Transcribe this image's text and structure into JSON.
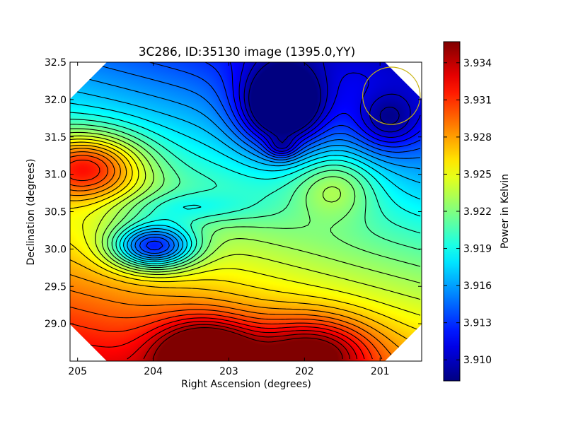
{
  "chart_data": {
    "type": "heatmap",
    "title": "3C286, ID:35130 image (1395.0,YY)",
    "xlabel": "Right Ascension (degrees)",
    "ylabel": "Declination (degrees)",
    "colorbar_label": "Power in Kelvin",
    "colormap": "jet",
    "grid": false,
    "x_axis": {
      "range": [
        205.1,
        200.45
      ],
      "ticks": [
        205,
        204,
        203,
        202,
        201
      ],
      "tick_labels": [
        "205",
        "204",
        "203",
        "202",
        "201"
      ]
    },
    "y_axis": {
      "range": [
        28.5,
        32.5
      ],
      "ticks": [
        29.0,
        29.5,
        30.0,
        30.5,
        31.0,
        31.5,
        32.0,
        32.5
      ],
      "tick_labels": [
        "29.0",
        "29.5",
        "30.0",
        "30.5",
        "31.0",
        "31.5",
        "32.0",
        "32.5"
      ]
    },
    "colorbar": {
      "range": [
        3.9083,
        3.9357
      ],
      "ticks": [
        3.91,
        3.913,
        3.916,
        3.919,
        3.922,
        3.925,
        3.928,
        3.931,
        3.934
      ],
      "tick_labels": [
        "3.910",
        "3.913",
        "3.916",
        "3.919",
        "3.922",
        "3.925",
        "3.928",
        "3.931",
        "3.934"
      ]
    },
    "field_features": [
      {
        "ra": 204.0,
        "dec": 30.03,
        "value": 3.9085,
        "kind": "minimum"
      },
      {
        "ra": 202.3,
        "dec": 31.85,
        "value": 3.9088,
        "kind": "minimum"
      },
      {
        "ra": 202.3,
        "dec": 31.35,
        "value": 3.9106,
        "kind": "minimum"
      },
      {
        "ra": 204.8,
        "dec": 31.1,
        "value": 3.9325,
        "kind": "maximum"
      },
      {
        "ra": 203.3,
        "dec": 28.62,
        "value": 3.9355,
        "kind": "maximum"
      },
      {
        "ra": 202.0,
        "dec": 28.6,
        "value": 3.9345,
        "kind": "maximum"
      },
      {
        "ra": 201.7,
        "dec": 30.8,
        "value": 3.9246,
        "kind": "maximum"
      }
    ],
    "contour_interval": 0.001,
    "beam_circle": {
      "ra": 200.85,
      "dec": 32.05,
      "radius_deg": 0.38,
      "color": "#c8b414"
    },
    "colors": {
      "contour": "#000000",
      "beam": "#c8b414",
      "axis": "#000000",
      "background": "#ffffff"
    }
  }
}
